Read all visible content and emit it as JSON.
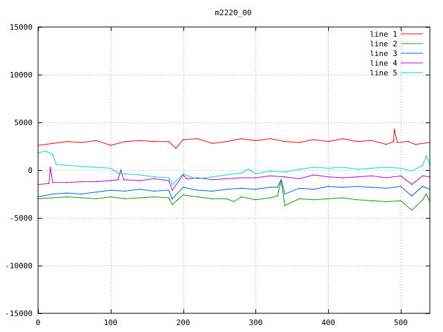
{
  "chart_data": {
    "type": "line",
    "title": "m2220_00",
    "xlabel": "",
    "ylabel": "",
    "xlim": [
      0,
      540
    ],
    "ylim": [
      -15000,
      15000
    ],
    "x_ticks": [
      0,
      100,
      200,
      300,
      400,
      500
    ],
    "y_ticks": [
      -15000,
      -10000,
      -5000,
      0,
      5000,
      10000,
      15000
    ],
    "grid": true,
    "legend_position": "top-right",
    "series": [
      {
        "name": "line 1",
        "color": "#ff0000",
        "x": [
          0,
          20,
          40,
          60,
          80,
          100,
          120,
          140,
          160,
          180,
          190,
          200,
          220,
          240,
          260,
          280,
          300,
          320,
          340,
          360,
          380,
          400,
          420,
          440,
          460,
          480,
          490,
          491,
          495,
          510,
          520,
          540
        ],
        "y": [
          2600,
          2800,
          3000,
          2900,
          3100,
          2600,
          3000,
          3100,
          3000,
          3000,
          2300,
          3200,
          3300,
          2800,
          3000,
          3300,
          3100,
          3300,
          3000,
          2900,
          3200,
          3000,
          3300,
          3000,
          3100,
          2700,
          3000,
          4300,
          2900,
          3000,
          2700,
          2900
        ]
      },
      {
        "name": "line 2",
        "color": "#00a000",
        "x": [
          0,
          20,
          40,
          60,
          80,
          100,
          120,
          140,
          160,
          180,
          185,
          200,
          220,
          240,
          260,
          270,
          280,
          300,
          320,
          330,
          335,
          340,
          360,
          380,
          400,
          420,
          440,
          460,
          480,
          500,
          515,
          530,
          535,
          540
        ],
        "y": [
          -3000,
          -2900,
          -2800,
          -2900,
          -3000,
          -2800,
          -3000,
          -2900,
          -2800,
          -2900,
          -3600,
          -2600,
          -2800,
          -3000,
          -3000,
          -3300,
          -2800,
          -3100,
          -2900,
          -2700,
          -1000,
          -3700,
          -3000,
          -3100,
          -3000,
          -2900,
          -3100,
          -3200,
          -3300,
          -3200,
          -4200,
          -3100,
          -2500,
          -3300
        ]
      },
      {
        "name": "line 3",
        "color": "#0060e0",
        "x": [
          0,
          20,
          40,
          60,
          80,
          100,
          120,
          140,
          160,
          180,
          185,
          200,
          220,
          240,
          260,
          280,
          300,
          320,
          330,
          335,
          340,
          360,
          380,
          400,
          420,
          440,
          460,
          480,
          500,
          515,
          530,
          540
        ],
        "y": [
          -2800,
          -2500,
          -2400,
          -2500,
          -2300,
          -2100,
          -2200,
          -2000,
          -2200,
          -2100,
          -3000,
          -1800,
          -2100,
          -2200,
          -2000,
          -1900,
          -2000,
          -1800,
          -1800,
          -1000,
          -2500,
          -1900,
          -2000,
          -1700,
          -1800,
          -1700,
          -1800,
          -1900,
          -1700,
          -2700,
          -1700,
          -2000
        ]
      },
      {
        "name": "line 4",
        "color": "#c000c0",
        "x": [
          0,
          15,
          17,
          20,
          40,
          60,
          80,
          100,
          110,
          114,
          118,
          140,
          160,
          180,
          185,
          200,
          205,
          210,
          220,
          240,
          260,
          280,
          300,
          320,
          340,
          360,
          380,
          400,
          420,
          440,
          460,
          480,
          500,
          515,
          530,
          540
        ],
        "y": [
          -1500,
          -1400,
          300,
          -1300,
          -1300,
          -1200,
          -1200,
          -1100,
          -1000,
          0,
          -1000,
          -1100,
          -900,
          -1100,
          -2100,
          -500,
          -900,
          -900,
          -800,
          -1000,
          -900,
          -800,
          -800,
          -600,
          -700,
          -900,
          -500,
          -700,
          -800,
          -700,
          -600,
          -800,
          -600,
          -1500,
          -600,
          -700
        ]
      },
      {
        "name": "line 5",
        "color": "#00d8d8",
        "x": [
          0,
          10,
          20,
          25,
          40,
          60,
          80,
          100,
          110,
          120,
          140,
          160,
          180,
          185,
          200,
          210,
          220,
          240,
          260,
          280,
          290,
          300,
          320,
          340,
          360,
          380,
          400,
          420,
          440,
          460,
          480,
          500,
          515,
          530,
          535,
          540
        ],
        "y": [
          1800,
          2000,
          1600,
          600,
          500,
          400,
          300,
          200,
          -300,
          -400,
          -500,
          -700,
          -800,
          -1500,
          -400,
          -700,
          -900,
          -700,
          -500,
          -300,
          100,
          -400,
          -100,
          -200,
          100,
          300,
          200,
          300,
          100,
          200,
          300,
          200,
          -100,
          500,
          1500,
          600
        ]
      }
    ]
  }
}
